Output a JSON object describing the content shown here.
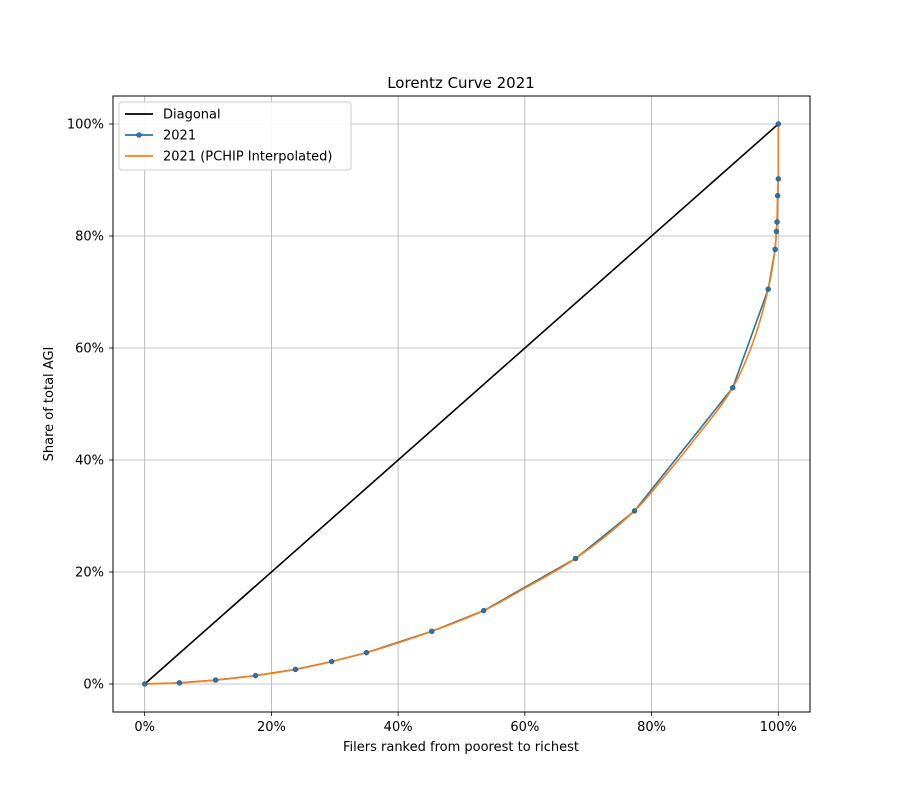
{
  "chart_data": {
    "type": "line",
    "title": "Lorentz Curve 2021",
    "xlabel": "Filers ranked from poorest to richest",
    "ylabel": "Share of total AGI",
    "xlim": [
      -0.05,
      1.05
    ],
    "ylim": [
      -0.05,
      1.05
    ],
    "x_ticks": [
      0,
      0.2,
      0.4,
      0.6,
      0.8,
      1.0
    ],
    "y_ticks": [
      0,
      0.2,
      0.4,
      0.6,
      0.8,
      1.0
    ],
    "x_tick_labels": [
      "0%",
      "20%",
      "40%",
      "60%",
      "80%",
      "100%"
    ],
    "y_tick_labels": [
      "0%",
      "20%",
      "40%",
      "60%",
      "80%",
      "100%"
    ],
    "grid": true,
    "legend_position": "top-left",
    "series": [
      {
        "name": "Diagonal",
        "color": "#000000",
        "marker": "none",
        "x": [
          0,
          1.0
        ],
        "y": [
          0,
          1.0
        ]
      },
      {
        "name": "2021",
        "color": "#1f77b4",
        "marker": "circle",
        "x": [
          0,
          0.055,
          0.112,
          0.175,
          0.238,
          0.295,
          0.35,
          0.453,
          0.535,
          0.68,
          0.773,
          0.928,
          0.984,
          0.995,
          0.997,
          0.998,
          0.999,
          1.0,
          1.0
        ],
        "y": [
          0,
          0.002,
          0.007,
          0.015,
          0.026,
          0.04,
          0.056,
          0.094,
          0.131,
          0.224,
          0.309,
          0.529,
          0.705,
          0.776,
          0.808,
          0.825,
          0.872,
          0.902,
          1.0
        ]
      },
      {
        "name": "2021 (PCHIP Interpolated)",
        "color": "#ff7f0e",
        "marker": "none",
        "x": [
          0,
          0.055,
          0.112,
          0.175,
          0.238,
          0.295,
          0.35,
          0.453,
          0.535,
          0.6,
          0.68,
          0.773,
          0.82,
          0.87,
          0.928,
          0.96,
          0.984,
          0.995,
          0.997,
          0.998,
          0.999,
          1.0,
          1.0
        ],
        "y": [
          0,
          0.002,
          0.007,
          0.015,
          0.026,
          0.04,
          0.056,
          0.094,
          0.131,
          0.171,
          0.224,
          0.309,
          0.37,
          0.44,
          0.529,
          0.61,
          0.705,
          0.776,
          0.808,
          0.825,
          0.872,
          0.902,
          1.0
        ]
      }
    ]
  }
}
